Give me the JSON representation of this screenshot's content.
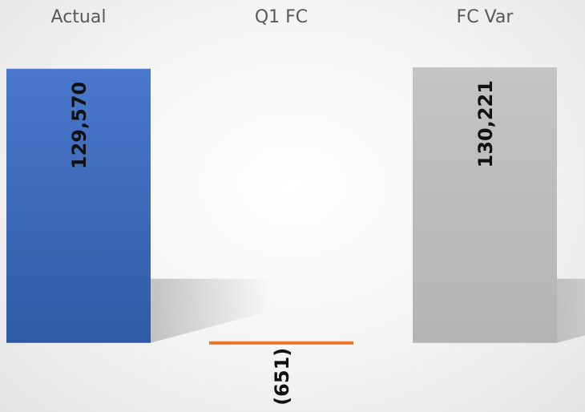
{
  "chart_data": {
    "type": "bar",
    "categories": [
      "Actual",
      "Q1 FC",
      "FC Var"
    ],
    "values": [
      129570,
      -651,
      130221
    ],
    "data_labels": [
      "129,570",
      "(651)",
      "130,221"
    ],
    "colors": [
      "#4472C4",
      "#ED7D31",
      "#BFBFBF"
    ],
    "ylim": [
      -16000,
      131000
    ],
    "grid": false,
    "legend": "none",
    "category_label_position": "top",
    "data_label_orientation": "vertical"
  }
}
